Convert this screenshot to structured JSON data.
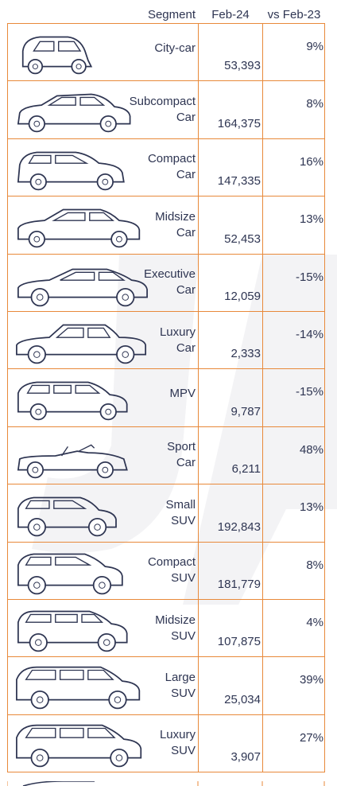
{
  "header": {
    "segment": "Segment",
    "period": "Feb-24",
    "change": "vs Feb-23"
  },
  "chart_data": {
    "type": "table",
    "columns": [
      "Segment",
      "Feb-24",
      "vs Feb-23"
    ],
    "rows": [
      {
        "segment": [
          "City-car"
        ],
        "value": "53,393",
        "change": "9%",
        "icon": "city-car-icon"
      },
      {
        "segment": [
          "Subcompact",
          "Car"
        ],
        "value": "164,375",
        "change": "8%",
        "icon": "subcompact-car-icon"
      },
      {
        "segment": [
          "Compact",
          "Car"
        ],
        "value": "147,335",
        "change": "16%",
        "icon": "compact-car-icon"
      },
      {
        "segment": [
          "Midsize",
          "Car"
        ],
        "value": "52,453",
        "change": "13%",
        "icon": "midsize-car-icon"
      },
      {
        "segment": [
          "Executive",
          "Car"
        ],
        "value": "12,059",
        "change": "-15%",
        "icon": "executive-car-icon"
      },
      {
        "segment": [
          "Luxury",
          "Car"
        ],
        "value": "2,333",
        "change": "-14%",
        "icon": "luxury-car-icon"
      },
      {
        "segment": [
          "MPV"
        ],
        "value": "9,787",
        "change": "-15%",
        "icon": "mpv-icon"
      },
      {
        "segment": [
          "Sport",
          "Car"
        ],
        "value": "6,211",
        "change": "48%",
        "icon": "sport-car-icon"
      },
      {
        "segment": [
          "Small",
          "SUV"
        ],
        "value": "192,843",
        "change": "13%",
        "icon": "small-suv-icon"
      },
      {
        "segment": [
          "Compact",
          "SUV"
        ],
        "value": "181,779",
        "change": "8%",
        "icon": "compact-suv-icon"
      },
      {
        "segment": [
          "Midsize",
          "SUV"
        ],
        "value": "107,875",
        "change": "4%",
        "icon": "midsize-suv-icon"
      },
      {
        "segment": [
          "Large",
          "SUV"
        ],
        "value": "25,034",
        "change": "39%",
        "icon": "large-suv-icon"
      },
      {
        "segment": [
          "Luxury",
          "SUV"
        ],
        "value": "3,907",
        "change": "27%",
        "icon": "luxury-suv-icon"
      }
    ]
  },
  "colors": {
    "grid": "#e8893a",
    "text": "#2e3552",
    "watermark": "#f2f2f4"
  }
}
